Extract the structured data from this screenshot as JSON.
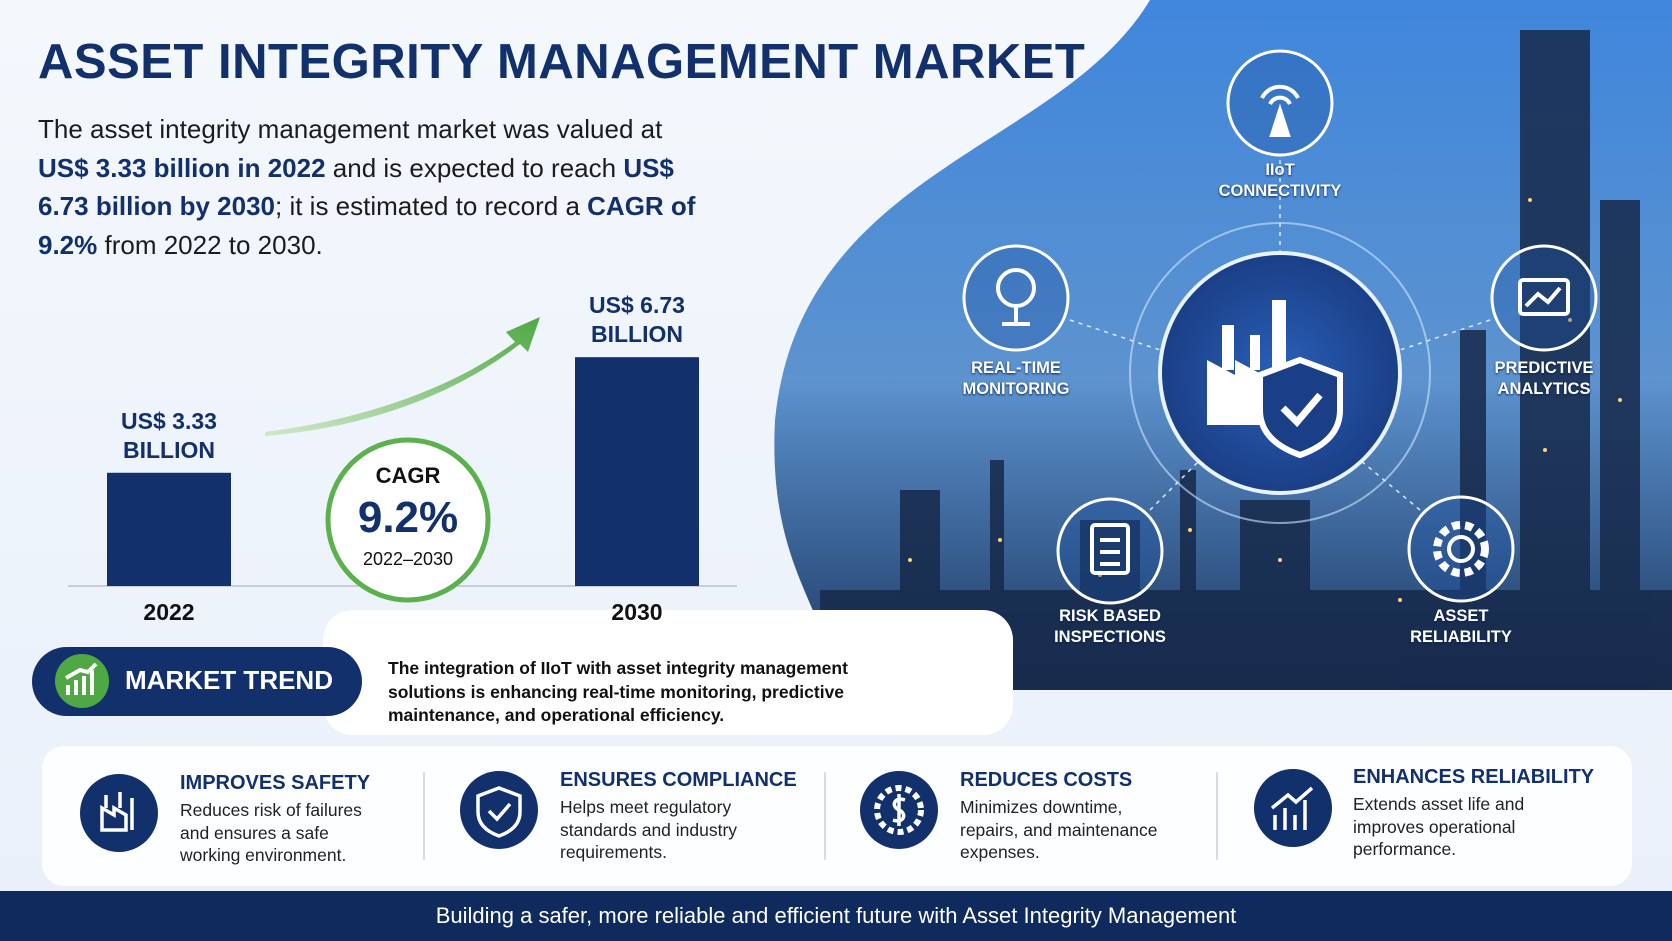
{
  "title": "ASSET INTEGRITY MANAGEMENT MARKET",
  "intro": [
    {
      "text": "The asset integrity management market was valued at ",
      "bold": false
    },
    {
      "text": "US$ 3.33 billion in 2022",
      "bold": true
    },
    {
      "text": " and is expected to reach ",
      "bold": false
    },
    {
      "text": "US$ 6.73 billion by 2030",
      "bold": true
    },
    {
      "text": "; it is estimated to record a ",
      "bold": false
    },
    {
      "text": "CAGR of 9.2%",
      "bold": true
    },
    {
      "text": " from 2022 to 2030.",
      "bold": false
    }
  ],
  "chart_data": {
    "type": "bar",
    "categories": [
      "2022",
      "2030"
    ],
    "values": [
      3.33,
      6.73
    ],
    "value_labels": [
      "US$ 3.33 BILLION",
      "US$ 6.73 BILLION"
    ],
    "color": "#12306b"
  },
  "cagr": {
    "label": "CAGR",
    "value": "9.2%",
    "period": "2022–2030"
  },
  "features": [
    "IIoT CONNECTIVITY",
    "REAL-TIME MONITORING",
    "PREDICTIVE ANALYTICS",
    "RISK BASED INSPECTIONS",
    "ASSET RELIABILITY"
  ],
  "market_trend": {
    "title": "MARKET TREND",
    "text": "The integration of IIoT with asset integrity management solutions is enhancing real-time monitoring, predictive maintenance, and operational efficiency."
  },
  "benefits": [
    {
      "title": "IMPROVES SAFETY",
      "text": "Reduces risk of failures and ensures a safe working environment."
    },
    {
      "title": "ENSURES COMPLIANCE",
      "text": "Helps meet regulatory standards and industry requirements."
    },
    {
      "title": "REDUCES COSTS",
      "text": "Minimizes downtime, repairs, and maintenance expenses."
    },
    {
      "title": "ENHANCES RELIABILITY",
      "text": "Extends asset life and improves operational performance."
    }
  ],
  "footer": "Building a safer, more reliable and efficient future with Asset Integrity Management"
}
